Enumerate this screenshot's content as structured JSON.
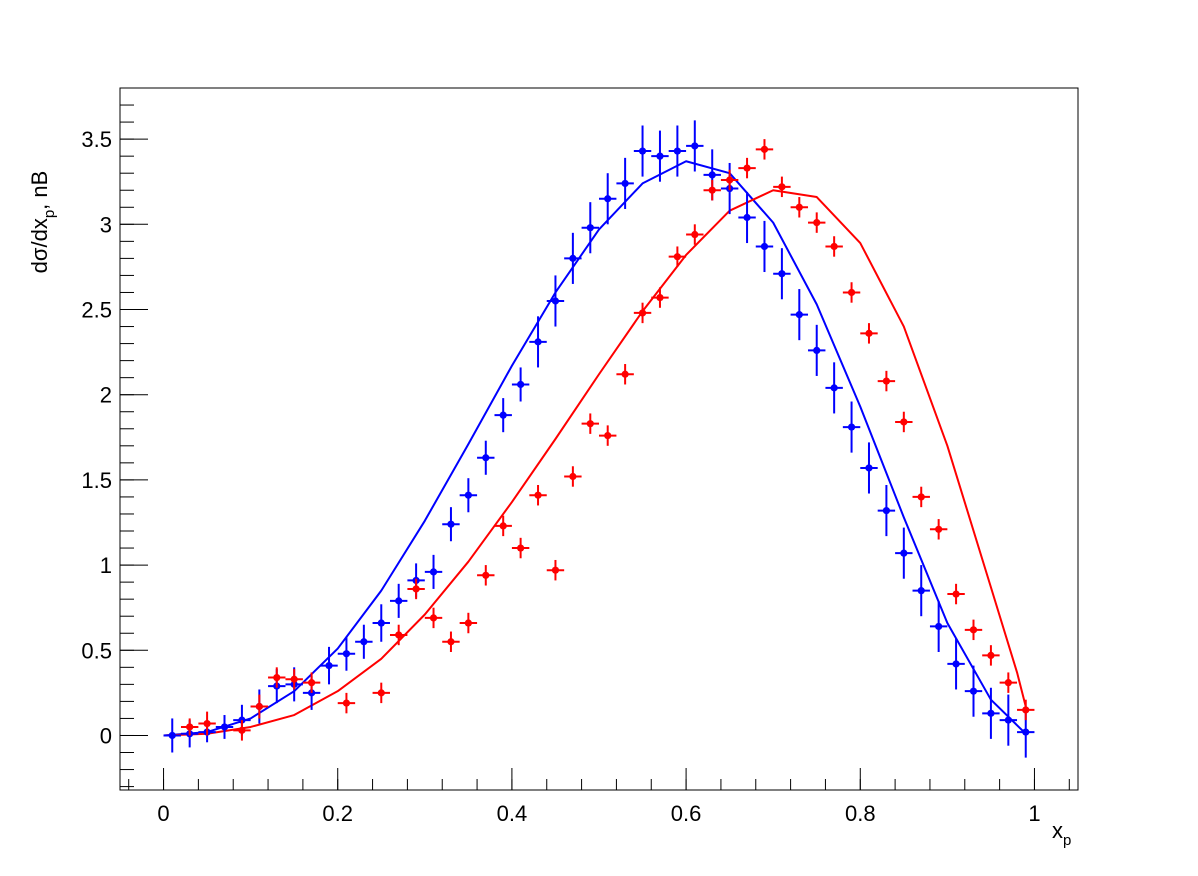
{
  "chart_data": {
    "type": "scatter",
    "xlabel": {
      "base": "x",
      "sub": "p"
    },
    "ylabel": {
      "pre": "dσ/dx",
      "sub": "p",
      "post": ", nB"
    },
    "xlim": [
      -0.05,
      1.05
    ],
    "ylim": [
      -0.32,
      3.8
    ],
    "xticks": [
      0,
      0.2,
      0.4,
      0.6,
      0.8,
      1
    ],
    "xtick_labels": [
      "0",
      "0.2",
      "0.4",
      "0.6",
      "0.8",
      "1"
    ],
    "yticks": [
      0,
      0.5,
      1,
      1.5,
      2,
      2.5,
      3,
      3.5
    ],
    "ytick_labels": [
      "0",
      "0.5",
      "1",
      "1.5",
      "2",
      "2.5",
      "3",
      "3.5"
    ],
    "grid": false,
    "legend": "none",
    "x_halfwidth": 0.01,
    "series": [
      {
        "kind": "points",
        "color": "#0000ff",
        "x": [
          0.01,
          0.03,
          0.05,
          0.07,
          0.09,
          0.11,
          0.13,
          0.15,
          0.17,
          0.19,
          0.21,
          0.23,
          0.25,
          0.27,
          0.29,
          0.31,
          0.33,
          0.35,
          0.37,
          0.39,
          0.41,
          0.43,
          0.45,
          0.47,
          0.49,
          0.51,
          0.53,
          0.55,
          0.57,
          0.59,
          0.61,
          0.63,
          0.65,
          0.67,
          0.69,
          0.71,
          0.73,
          0.75,
          0.77,
          0.79,
          0.81,
          0.83,
          0.85,
          0.87,
          0.89,
          0.91,
          0.93,
          0.95,
          0.97,
          0.99
        ],
        "y": [
          0.0,
          0.01,
          0.02,
          0.05,
          0.09,
          0.17,
          0.29,
          0.3,
          0.25,
          0.41,
          0.48,
          0.55,
          0.66,
          0.79,
          0.91,
          0.96,
          1.24,
          1.41,
          1.63,
          1.88,
          2.06,
          2.31,
          2.55,
          2.8,
          2.98,
          3.15,
          3.24,
          3.43,
          3.4,
          3.43,
          3.46,
          3.29,
          3.21,
          3.04,
          2.87,
          2.71,
          2.47,
          2.26,
          2.04,
          1.81,
          1.57,
          1.32,
          1.07,
          0.85,
          0.64,
          0.42,
          0.26,
          0.13,
          0.09,
          0.02
        ],
        "err": [
          0.1,
          0.08,
          0.06,
          0.07,
          0.09,
          0.1,
          0.1,
          0.1,
          0.1,
          0.11,
          0.1,
          0.1,
          0.11,
          0.1,
          0.1,
          0.1,
          0.1,
          0.1,
          0.1,
          0.1,
          0.1,
          0.15,
          0.15,
          0.15,
          0.15,
          0.15,
          0.15,
          0.15,
          0.15,
          0.15,
          0.15,
          0.15,
          0.15,
          0.15,
          0.15,
          0.15,
          0.15,
          0.15,
          0.15,
          0.15,
          0.15,
          0.15,
          0.15,
          0.15,
          0.15,
          0.15,
          0.15,
          0.15,
          0.15,
          0.15
        ]
      },
      {
        "kind": "points",
        "color": "#ff0000",
        "x": [
          0.03,
          0.05,
          0.09,
          0.11,
          0.13,
          0.15,
          0.17,
          0.21,
          0.25,
          0.27,
          0.29,
          0.31,
          0.33,
          0.35,
          0.37,
          0.39,
          0.41,
          0.43,
          0.45,
          0.47,
          0.49,
          0.51,
          0.53,
          0.55,
          0.57,
          0.59,
          0.61,
          0.63,
          0.65,
          0.67,
          0.69,
          0.71,
          0.73,
          0.75,
          0.77,
          0.79,
          0.81,
          0.83,
          0.85,
          0.87,
          0.89,
          0.91,
          0.93,
          0.95,
          0.97,
          0.99
        ],
        "y": [
          0.05,
          0.07,
          0.03,
          0.17,
          0.34,
          0.33,
          0.31,
          0.19,
          0.25,
          0.59,
          0.86,
          0.69,
          0.55,
          0.66,
          0.94,
          1.23,
          1.1,
          1.41,
          0.97,
          1.52,
          1.83,
          1.76,
          2.12,
          2.48,
          2.57,
          2.81,
          2.94,
          3.2,
          3.26,
          3.33,
          3.44,
          3.22,
          3.1,
          3.01,
          2.87,
          2.6,
          2.36,
          2.08,
          1.84,
          1.4,
          1.21,
          0.83,
          0.62,
          0.47,
          0.31,
          0.15
        ],
        "err": [
          0.05,
          0.07,
          0.06,
          0.07,
          0.06,
          0.06,
          0.06,
          0.06,
          0.06,
          0.06,
          0.06,
          0.06,
          0.06,
          0.06,
          0.06,
          0.06,
          0.06,
          0.06,
          0.06,
          0.06,
          0.06,
          0.06,
          0.06,
          0.06,
          0.06,
          0.06,
          0.06,
          0.06,
          0.06,
          0.06,
          0.06,
          0.06,
          0.06,
          0.06,
          0.06,
          0.06,
          0.06,
          0.06,
          0.06,
          0.06,
          0.06,
          0.06,
          0.06,
          0.06,
          0.06,
          0.06
        ]
      },
      {
        "kind": "curve",
        "color": "#0000ff",
        "x": [
          0.0,
          0.05,
          0.1,
          0.15,
          0.2,
          0.25,
          0.3,
          0.35,
          0.4,
          0.45,
          0.5,
          0.55,
          0.6,
          0.65,
          0.7,
          0.75,
          0.8,
          0.85,
          0.9,
          0.95,
          0.99
        ],
        "y": [
          0.0,
          0.02,
          0.1,
          0.26,
          0.51,
          0.85,
          1.26,
          1.71,
          2.17,
          2.6,
          2.97,
          3.24,
          3.37,
          3.3,
          3.01,
          2.53,
          1.93,
          1.28,
          0.66,
          0.21,
          0.01
        ]
      },
      {
        "kind": "curve",
        "color": "#ff0000",
        "x": [
          0.0,
          0.05,
          0.1,
          0.15,
          0.2,
          0.25,
          0.3,
          0.35,
          0.4,
          0.45,
          0.5,
          0.55,
          0.6,
          0.65,
          0.7,
          0.75,
          0.8,
          0.85,
          0.9,
          0.95,
          0.98,
          0.99
        ],
        "y": [
          0.0,
          0.01,
          0.05,
          0.12,
          0.26,
          0.45,
          0.71,
          1.02,
          1.37,
          1.74,
          2.12,
          2.49,
          2.82,
          3.08,
          3.2,
          3.16,
          2.89,
          2.4,
          1.7,
          0.87,
          0.37,
          0.17
        ]
      }
    ]
  }
}
